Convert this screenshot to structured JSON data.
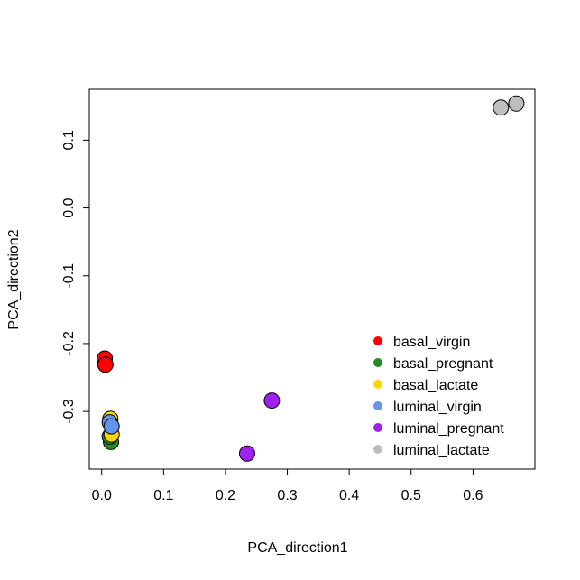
{
  "chart_data": {
    "type": "scatter",
    "title": "",
    "xlabel": "PCA_direction1",
    "ylabel": "PCA_direction2",
    "xlim": [
      -0.02,
      0.7
    ],
    "ylim": [
      -0.385,
      0.175
    ],
    "xticks": [
      0.0,
      0.1,
      0.2,
      0.3,
      0.4,
      0.5,
      0.6
    ],
    "xtick_labels": [
      "0.0",
      "0.1",
      "0.2",
      "0.3",
      "0.4",
      "0.5",
      "0.6"
    ],
    "yticks": [
      -0.3,
      -0.2,
      -0.1,
      0.0,
      0.1
    ],
    "ytick_labels": [
      "-0.3",
      "-0.2",
      "-0.1",
      "0.0",
      "0.1"
    ],
    "grid": false,
    "legend_position": "bottom-right",
    "series": [
      {
        "name": "basal_virgin",
        "color": "#ff0000",
        "points": [
          [
            0.005,
            -0.222
          ],
          [
            0.006,
            -0.231
          ]
        ]
      },
      {
        "name": "basal_pregnant",
        "color": "#228b22",
        "points": [
          [
            0.015,
            -0.345
          ],
          [
            0.013,
            -0.337
          ]
        ]
      },
      {
        "name": "basal_lactate",
        "color": "#ffd700",
        "points": [
          [
            0.014,
            -0.311
          ],
          [
            0.016,
            -0.334
          ]
        ]
      },
      {
        "name": "luminal_virgin",
        "color": "#6495ed",
        "points": [
          [
            0.013,
            -0.316
          ],
          [
            0.016,
            -0.322
          ]
        ]
      },
      {
        "name": "luminal_pregnant",
        "color": "#a020f0",
        "points": [
          [
            0.275,
            -0.284
          ],
          [
            0.235,
            -0.362
          ]
        ]
      },
      {
        "name": "luminal_lactate",
        "color": "#bebebe",
        "points": [
          [
            0.645,
            0.148
          ],
          [
            0.67,
            0.154
          ]
        ]
      }
    ]
  }
}
